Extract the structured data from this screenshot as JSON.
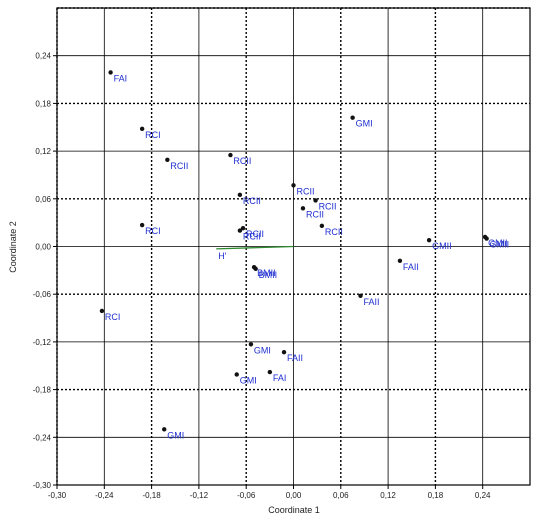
{
  "chart_data": {
    "type": "scatter",
    "title": "",
    "xlabel": "Coordinate 1",
    "ylabel": "Coordinate 2",
    "xlim": [
      -0.3,
      0.3
    ],
    "ylim": [
      -0.3,
      0.3
    ],
    "xticks": [
      -0.3,
      -0.24,
      -0.18,
      -0.12,
      -0.06,
      0.0,
      0.06,
      0.12,
      0.18,
      0.24
    ],
    "xtick_labels": [
      "-0,30",
      "-0,24",
      "-0,18",
      "-0,12",
      "-0,06",
      "0,00",
      "0,06",
      "0,12",
      "0,18",
      "0,24"
    ],
    "yticks": [
      0.24,
      0.18,
      0.12,
      0.06,
      0.0,
      -0.06,
      -0.12,
      -0.18,
      -0.24,
      -0.3
    ],
    "ytick_labels": [
      "0,24",
      "0,18",
      "0,12",
      "0,06",
      "0,00",
      "-0,06",
      "-0,12",
      "-0,18",
      "-0,24",
      "-0,30"
    ],
    "grid_dotted_x": [
      -0.3,
      -0.18,
      -0.06,
      0.06,
      0.18
    ],
    "grid_dotted_y": [
      0.3,
      0.18,
      0.06,
      -0.06,
      -0.18
    ],
    "grid_solid_x": [
      -0.24,
      -0.12,
      0.0,
      0.12,
      0.24
    ],
    "grid_solid_y": [
      0.24,
      0.12,
      0.0,
      -0.12,
      -0.24
    ],
    "points": [
      {
        "label": "FAI",
        "x": -0.232,
        "y": 0.219
      },
      {
        "label": "RCI",
        "x": -0.192,
        "y": 0.148
      },
      {
        "label": "RCII",
        "x": -0.16,
        "y": 0.109
      },
      {
        "label": "RCI",
        "x": -0.192,
        "y": 0.027
      },
      {
        "label": "RCI",
        "x": -0.243,
        "y": -0.081
      },
      {
        "label": "RCII",
        "x": -0.08,
        "y": 0.115
      },
      {
        "label": "RCII",
        "x": -0.068,
        "y": 0.065
      },
      {
        "label": "RCII",
        "x": -0.064,
        "y": 0.023
      },
      {
        "label": "RCII",
        "x": -0.068,
        "y": 0.02
      },
      {
        "label": "RCII",
        "x": 0.0,
        "y": 0.077
      },
      {
        "label": "RCII",
        "x": 0.028,
        "y": 0.058
      },
      {
        "label": "RCII",
        "x": 0.012,
        "y": 0.048
      },
      {
        "label": "RCII",
        "x": 0.036,
        "y": 0.026
      },
      {
        "label": "GMI",
        "x": 0.075,
        "y": 0.162
      },
      {
        "label": "GMII",
        "x": 0.172,
        "y": 0.008
      },
      {
        "label": "GMII",
        "x": 0.243,
        "y": 0.012
      },
      {
        "label": "GMII",
        "x": 0.245,
        "y": 0.01
      },
      {
        "label": "FAII",
        "x": 0.135,
        "y": -0.018
      },
      {
        "label": "FAII",
        "x": 0.085,
        "y": -0.062
      },
      {
        "label": "BMII",
        "x": -0.05,
        "y": -0.026
      },
      {
        "label": "BMII",
        "x": -0.048,
        "y": -0.028
      },
      {
        "label": "GMI",
        "x": -0.054,
        "y": -0.123
      },
      {
        "label": "FAII",
        "x": -0.012,
        "y": -0.133
      },
      {
        "label": "FAI",
        "x": -0.03,
        "y": -0.158
      },
      {
        "label": "GMI",
        "x": -0.072,
        "y": -0.161
      },
      {
        "label": "GMI",
        "x": -0.164,
        "y": -0.23
      }
    ],
    "biplot_vector": {
      "label": "H'",
      "x0": 0.0,
      "y0": 0.0,
      "x1": -0.098,
      "y1": -0.003,
      "color": "#2e8b2e"
    },
    "point_color": "#111111",
    "label_color": "#1f2fd0"
  }
}
